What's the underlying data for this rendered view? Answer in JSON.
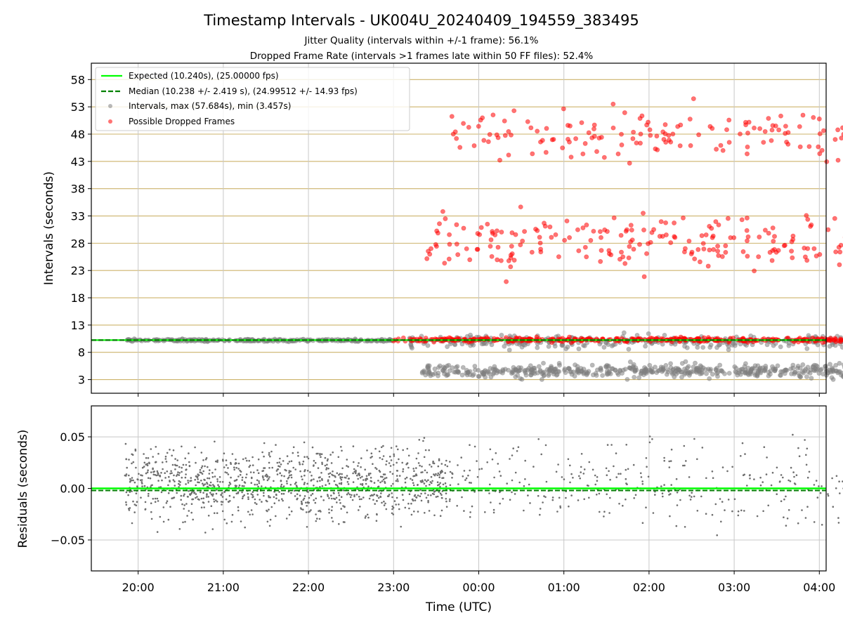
{
  "title": "Timestamp Intervals - UK004U_20240409_194559_383495",
  "subtitle_1": "Jitter Quality (intervals within +/-1 frame): 56.1%",
  "subtitle_2": "Dropped Frame Rate (intervals >1 frames late within 50 FF files): 52.4%",
  "colors": {
    "expected": "#00ff00",
    "median": "#008000",
    "intervals": "#808080",
    "dropped": "#ff0000",
    "hgrid_top": "#cdb36b",
    "grid": "#c8c8c8"
  },
  "chart_data": [
    {
      "type": "scatter",
      "panel": "top",
      "ylabel": "Intervals (seconds)",
      "ylim": [
        0.5,
        61
      ],
      "y_ticks": [
        "3",
        "8",
        "13",
        "18",
        "23",
        "28",
        "33",
        "38",
        "43",
        "48",
        "53",
        "58"
      ],
      "y_tick_values": [
        3,
        8,
        13,
        18,
        23,
        28,
        33,
        38,
        43,
        48,
        53,
        58
      ],
      "xlim_hours": [
        19.45,
        28.08
      ],
      "grid": "horizontal lines at y ticks, vertical lines at hour ticks",
      "legend": {
        "placement": "top-left",
        "entries": [
          "Expected (10.240s), (25.00000 fps)",
          "Median (10.238 +/- 2.419 s), (24.99512 +/- 14.93 fps)",
          "Intervals, max (57.684s), min (3.457s)",
          "Possible Dropped Frames"
        ]
      },
      "expected_line": 10.24,
      "median_line": 10.238,
      "series": [
        {
          "name": "Intervals, max (57.684s), min (3.457s)",
          "description_clusters": [
            {
              "x_range": [
                "19:50",
                "23:00"
              ],
              "y_center": 10.2,
              "spread": 0.2
            },
            {
              "x_range": [
                "23:10",
                "04:35"
              ],
              "y_center": 10.0,
              "spread": 1.0
            },
            {
              "x_range": [
                "23:20",
                "04:35"
              ],
              "y_center": 4.6,
              "spread": 1.0
            }
          ]
        },
        {
          "name": "Possible Dropped Frames",
          "description_clusters": [
            {
              "x_range": [
                "23:00",
                "04:35"
              ],
              "y_center": 10.3,
              "spread": 0.3
            },
            {
              "x_range": [
                "23:20",
                "04:35"
              ],
              "y_center": 28,
              "spread": 4
            },
            {
              "x_range": [
                "23:40",
                "04:35"
              ],
              "y_center": 48,
              "spread": 4
            }
          ]
        }
      ]
    },
    {
      "type": "scatter",
      "panel": "bottom",
      "xlabel": "Time (UTC)",
      "ylabel": "Residuals (seconds)",
      "ylim": [
        -0.08,
        0.08
      ],
      "y_ticks": [
        "0.05",
        "0.00",
        "−0.05"
      ],
      "y_tick_values": [
        0.05,
        0.0,
        -0.05
      ],
      "x_ticks": [
        "20:00",
        "21:00",
        "22:00",
        "23:00",
        "00:00",
        "01:00",
        "02:00",
        "03:00",
        "04:00"
      ],
      "x_tick_hours": [
        20,
        21,
        22,
        23,
        24,
        25,
        26,
        27,
        28
      ],
      "xlim_hours": [
        19.45,
        28.08
      ],
      "zero_line": 0.0,
      "median_residual": -0.002,
      "series": [
        {
          "name": "Residuals",
          "description_clusters": [
            {
              "x_range": [
                "19:50",
                "23:40"
              ],
              "y_center": 0.005,
              "spread": 0.03,
              "density": "dense"
            },
            {
              "x_range": [
                "23:40",
                "04:35"
              ],
              "y_center": 0.005,
              "spread": 0.035,
              "density": "sparse"
            }
          ]
        }
      ]
    }
  ]
}
